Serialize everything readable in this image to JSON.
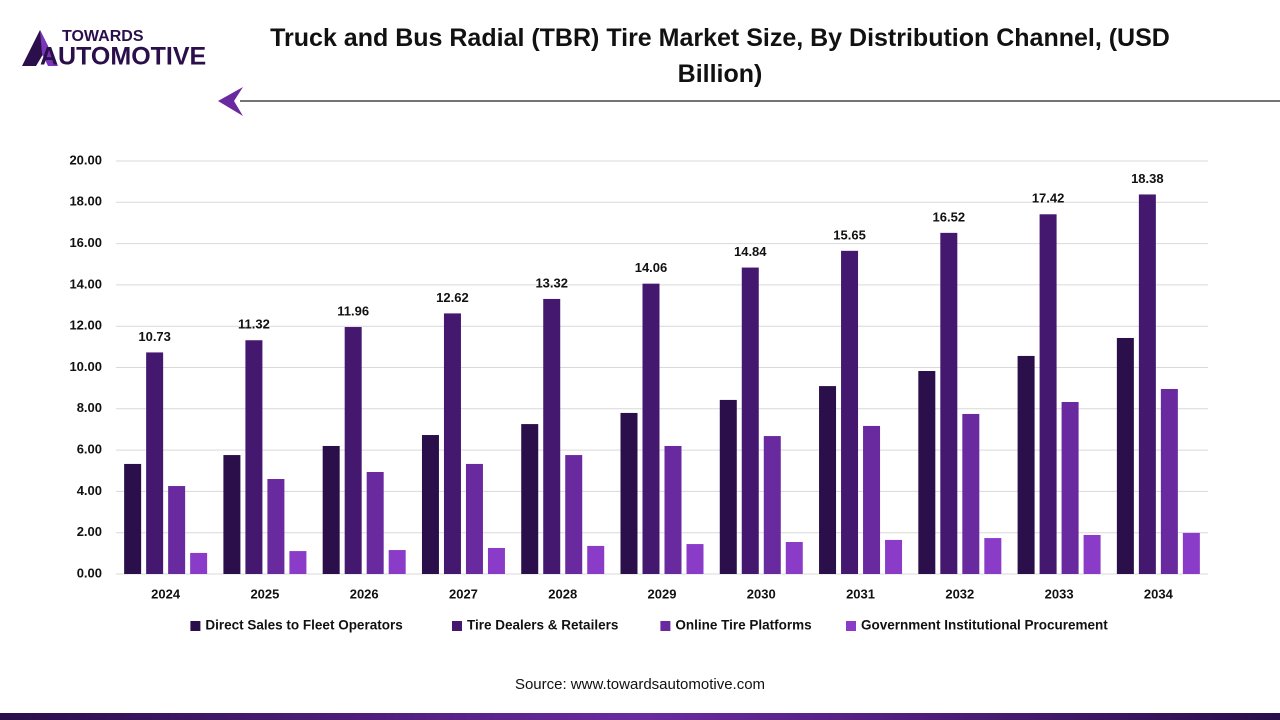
{
  "brand": {
    "line1": "TOWARDS",
    "line2": "AUTOMOTIVE"
  },
  "source": "Source: www.towardsautomotive.com",
  "chart_data": {
    "type": "bar",
    "title": "Truck and Bus Radial (TBR) Tire Market Size, By Distribution Channel, (USD Billion)",
    "categories": [
      "2024",
      "2025",
      "2026",
      "2027",
      "2028",
      "2029",
      "2030",
      "2031",
      "2032",
      "2033",
      "2034"
    ],
    "series": [
      {
        "name": "Direct Sales to Fleet Operators",
        "color": "#2a0f4a",
        "values": [
          5.33,
          5.76,
          6.2,
          6.73,
          7.26,
          7.8,
          8.43,
          9.1,
          9.83,
          10.56,
          11.43
        ]
      },
      {
        "name": "Tire Dealers & Retailers",
        "color": "#45186f",
        "data_labels": true,
        "values": [
          10.73,
          11.32,
          11.96,
          12.62,
          13.32,
          14.06,
          14.84,
          15.65,
          16.52,
          17.42,
          18.38
        ]
      },
      {
        "name": "Online Tire Platforms",
        "color": "#6a2a9f",
        "values": [
          4.26,
          4.6,
          4.94,
          5.33,
          5.76,
          6.2,
          6.68,
          7.17,
          7.75,
          8.33,
          8.96
        ]
      },
      {
        "name": "Government Institutional Procurement",
        "color": "#8a3cc9",
        "values": [
          1.02,
          1.11,
          1.16,
          1.26,
          1.36,
          1.45,
          1.55,
          1.65,
          1.74,
          1.89,
          1.99
        ]
      }
    ],
    "ylim": [
      0,
      20
    ],
    "yticks": [
      {
        "value": 0,
        "label": "0.00"
      },
      {
        "value": 2,
        "label": "2.00"
      },
      {
        "value": 4,
        "label": "4.00"
      },
      {
        "value": 6,
        "label": "6.00"
      },
      {
        "value": 8,
        "label": "8.00"
      },
      {
        "value": 10,
        "label": "10.00"
      },
      {
        "value": 12,
        "label": "12.00"
      },
      {
        "value": 14,
        "label": "14.00"
      },
      {
        "value": 16,
        "label": "16.00"
      },
      {
        "value": 18,
        "label": "18.00"
      },
      {
        "value": 20,
        "label": "20.00"
      }
    ],
    "grid": true,
    "legend": "bottom"
  }
}
